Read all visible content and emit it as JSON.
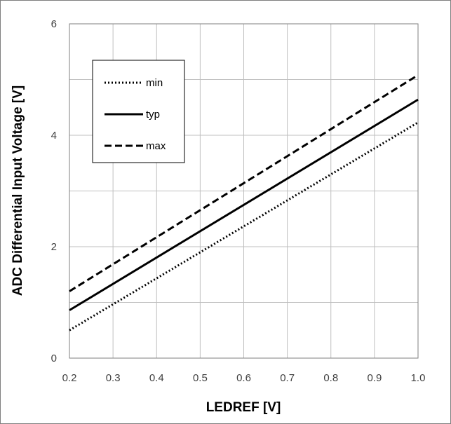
{
  "chart_data": {
    "type": "line",
    "xlabel": "LEDREF [V]",
    "ylabel": "ADC Differential Input Voltage [V]",
    "xlim": [
      0.2,
      1.0
    ],
    "ylim": [
      0,
      6
    ],
    "x_ticks": [
      "0.2",
      "0.3",
      "0.4",
      "0.5",
      "0.6",
      "0.7",
      "0.8",
      "0.9",
      "1.0"
    ],
    "y_ticks": [
      "0",
      "2",
      "4",
      "6"
    ],
    "x_tick_values": [
      0.2,
      0.3,
      0.4,
      0.5,
      0.6,
      0.7,
      0.8,
      0.9,
      1.0
    ],
    "y_tick_values": [
      0,
      2,
      4,
      6
    ],
    "y_minor_grid_step": 1,
    "grid": true,
    "legend_position": "top-left",
    "series": [
      {
        "name": "min",
        "style": "dotted",
        "x": [
          0.2,
          1.0
        ],
        "y": [
          0.5,
          4.23
        ]
      },
      {
        "name": "typ",
        "style": "solid",
        "x": [
          0.2,
          1.0
        ],
        "y": [
          0.86,
          4.64
        ]
      },
      {
        "name": "max",
        "style": "dashed",
        "x": [
          0.2,
          1.0
        ],
        "y": [
          1.2,
          5.08
        ]
      }
    ],
    "colors": {
      "line": "#000000",
      "grid": "#bfbfbf",
      "frame": "#7f7f7f",
      "tick_text": "#404040"
    }
  }
}
